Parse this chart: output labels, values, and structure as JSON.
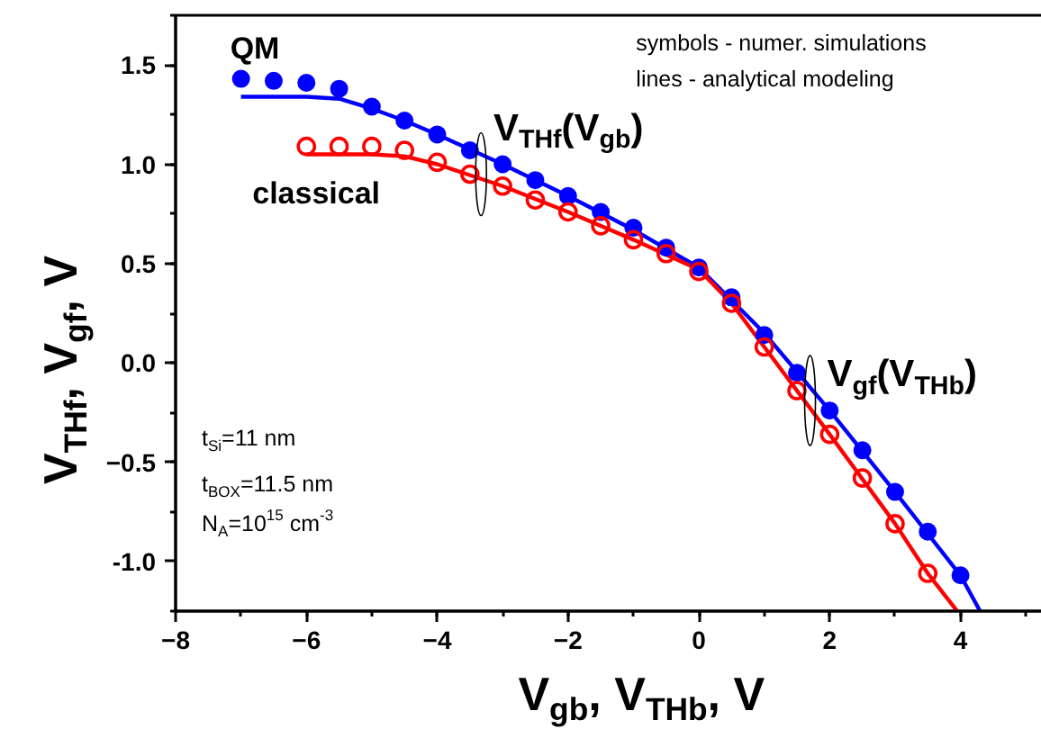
{
  "chart_data": {
    "type": "scatter",
    "xlabel": "V$_{gb}$, V$_{THb}$, V",
    "ylabel": "V$_{THf}$, V$_{gf}$, V",
    "xlim": [
      -8,
      5.3
    ],
    "ylim": [
      -1.25,
      1.75
    ],
    "xticks": [
      -8,
      -6,
      -4,
      -2,
      0,
      2,
      4
    ],
    "yticks": [
      {
        "value": -1,
        "label": "-1.0"
      },
      -0.5,
      {
        "value": 0,
        "label": "0.0"
      },
      0.5,
      {
        "value": 1,
        "label": "1.0"
      },
      1.5
    ],
    "grid": false,
    "marker": "circle",
    "series": [
      {
        "name": "QM",
        "color": "#0000ff",
        "x": [
          -7,
          -6.5,
          -6,
          -5.5,
          -5,
          -4.5,
          -4,
          -3.5,
          -3,
          -2.5,
          -2,
          -1.5,
          -1,
          -0.5,
          0,
          0.5,
          1,
          1.5,
          2,
          2.5,
          3,
          3.5,
          4
        ],
        "values": [
          1.43,
          1.42,
          1.41,
          1.38,
          1.29,
          1.22,
          1.15,
          1.07,
          1.0,
          0.92,
          0.84,
          0.76,
          0.68,
          0.58,
          0.48,
          0.33,
          0.14,
          -0.05,
          -0.24,
          -0.44,
          -0.65,
          -0.85,
          -1.07
        ]
      },
      {
        "name": "classical",
        "color": "#ff0000",
        "x": [
          -6,
          -5.5,
          -5,
          -4.5,
          -4,
          -3.5,
          -3,
          -2.5,
          -2,
          -1.5,
          -1,
          -0.5,
          0,
          0.5,
          1,
          1.5,
          2,
          2.5,
          3,
          3.5
        ],
        "values": [
          1.09,
          1.09,
          1.09,
          1.07,
          1.01,
          0.95,
          0.89,
          0.82,
          0.76,
          0.69,
          0.62,
          0.55,
          0.46,
          0.3,
          0.08,
          -0.14,
          -0.36,
          -0.58,
          -0.81,
          -1.06
        ]
      },
      {
        "type": "line",
        "color": "#0000ff",
        "marker": "none",
        "line_style": "solid",
        "x": [
          -7,
          -6,
          -5.5,
          -5,
          -4.5,
          -4,
          -3,
          -2,
          -1,
          0,
          1,
          2,
          3,
          4,
          4.3
        ],
        "values": [
          1.34,
          1.34,
          1.33,
          1.28,
          1.22,
          1.15,
          1.0,
          0.84,
          0.67,
          0.48,
          0.15,
          -0.24,
          -0.65,
          -1.07,
          -1.25
        ]
      },
      {
        "type": "line",
        "color": "#ff0000",
        "marker": "none",
        "line_style": "solid",
        "x": [
          -6,
          -5,
          -4.5,
          -4,
          -3,
          -2,
          -1,
          0,
          0.5,
          1,
          2,
          3,
          3.5,
          3.95
        ],
        "values": [
          1.05,
          1.05,
          1.04,
          1.0,
          0.89,
          0.76,
          0.62,
          0.47,
          0.3,
          0.08,
          -0.36,
          -0.81,
          -1.06,
          -1.25
        ]
      }
    ],
    "annotations": [
      "V$_{THf}$(V$_{gb}$)",
      "V$_{gf}$(V$_{THb}$)",
      "symbols - numer. simulations",
      "lines - analytical modeling",
      "t$_{Si}$=11 nm",
      "t$_{BOX}$=11.5 nm",
      "N$_{A}$=10$^{15}$ cm$^{-3}$"
    ]
  }
}
